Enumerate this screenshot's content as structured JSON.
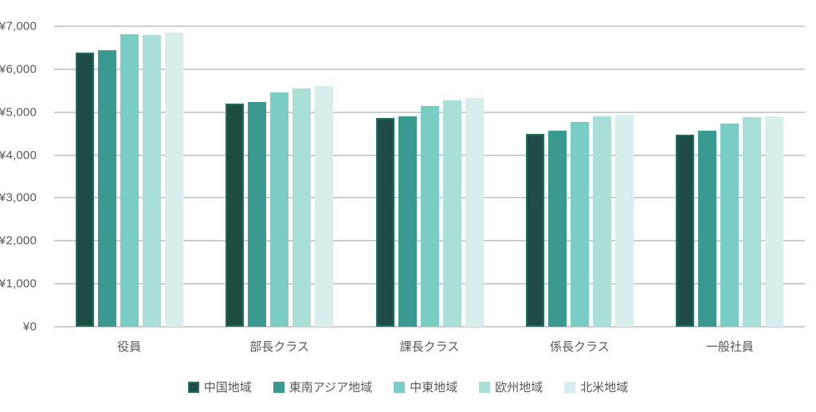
{
  "chart_data": {
    "type": "bar",
    "title": "",
    "xlabel": "",
    "ylabel": "",
    "categories": [
      "役員",
      "部長クラス",
      "課長クラス",
      "係長クラス",
      "一般社員"
    ],
    "series": [
      {
        "name": "中国地域",
        "color": "#1e4c44",
        "border_color": "#1d6f62",
        "values": [
          6390,
          5190,
          4870,
          4500,
          4480
        ]
      },
      {
        "name": "東南アジア地域",
        "color": "#3a9a92",
        "border_color": "#3a9a92",
        "values": [
          6450,
          5230,
          4910,
          4570,
          4560
        ]
      },
      {
        "name": "中東地域",
        "color": "#7acdc5",
        "border_color": "#7acdc5",
        "values": [
          6820,
          5460,
          5150,
          4780,
          4740
        ]
      },
      {
        "name": "欧州地域",
        "color": "#aadfd8",
        "border_color": "#aadfd8",
        "values": [
          6800,
          5560,
          5280,
          4910,
          4890
        ]
      },
      {
        "name": "北米地域",
        "color": "#d7eeec",
        "border_color": "#d7eeec",
        "values": [
          6860,
          5610,
          5320,
          4930,
          4910
        ]
      }
    ],
    "ylim": [
      0,
      7000
    ],
    "ytick_interval": 1000,
    "ytick_labels": [
      "¥0",
      "¥1,000",
      "¥2,000",
      "¥3,000",
      "¥4,000",
      "¥5,000",
      "¥6,000",
      "¥7,000"
    ],
    "grid": true,
    "legend_position": "bottom"
  },
  "colors": {
    "background": "#ffffff",
    "gridline": "#cdcdcd",
    "axis_text": "#58595b"
  }
}
